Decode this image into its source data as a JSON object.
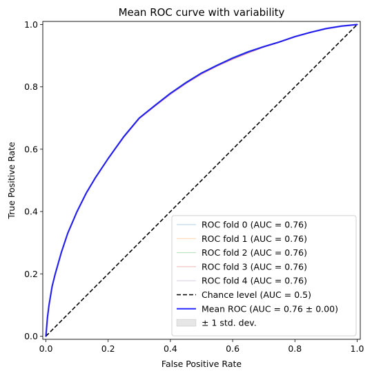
{
  "chart_data": {
    "type": "line",
    "title": "Mean ROC curve with variability",
    "xlabel": "False Positive Rate",
    "ylabel": "True Positive Rate",
    "xlim": [
      -0.01,
      1.01
    ],
    "ylim": [
      -0.01,
      1.01
    ],
    "x_ticks": [
      "0.0",
      "0.2",
      "0.4",
      "0.6",
      "0.8",
      "1.0"
    ],
    "y_ticks": [
      "0.0",
      "0.2",
      "0.4",
      "0.6",
      "0.8",
      "1.0"
    ],
    "grid": false,
    "legend_position": "lower-right",
    "series": [
      {
        "name": "ROC fold 0 (AUC = 0.76)",
        "color": "#1f77b4",
        "style": "thin-faint",
        "x": [
          0,
          0.005,
          0.01,
          0.02,
          0.03,
          0.05,
          0.07,
          0.1,
          0.13,
          0.16,
          0.2,
          0.25,
          0.3,
          0.35,
          0.4,
          0.45,
          0.5,
          0.55,
          0.6,
          0.65,
          0.7,
          0.75,
          0.8,
          0.85,
          0.9,
          0.95,
          1.0
        ],
        "y": [
          0,
          0.06,
          0.1,
          0.16,
          0.2,
          0.27,
          0.33,
          0.4,
          0.46,
          0.51,
          0.57,
          0.64,
          0.7,
          0.74,
          0.78,
          0.815,
          0.845,
          0.87,
          0.895,
          0.915,
          0.93,
          0.945,
          0.962,
          0.975,
          0.987,
          0.995,
          1.0
        ]
      },
      {
        "name": "ROC fold 1 (AUC = 0.76)",
        "color": "#ff7f0e",
        "style": "thin-faint",
        "x": [
          0,
          0.005,
          0.01,
          0.02,
          0.03,
          0.05,
          0.07,
          0.1,
          0.13,
          0.16,
          0.2,
          0.25,
          0.3,
          0.35,
          0.4,
          0.45,
          0.5,
          0.55,
          0.6,
          0.65,
          0.7,
          0.75,
          0.8,
          0.85,
          0.9,
          0.95,
          1.0
        ],
        "y": [
          0,
          0.058,
          0.098,
          0.158,
          0.198,
          0.268,
          0.328,
          0.398,
          0.458,
          0.508,
          0.568,
          0.638,
          0.698,
          0.738,
          0.778,
          0.812,
          0.842,
          0.867,
          0.89,
          0.91,
          0.928,
          0.943,
          0.96,
          0.974,
          0.986,
          0.995,
          1.0
        ]
      },
      {
        "name": "ROC fold 2 (AUC = 0.76)",
        "color": "#2ca02c",
        "style": "thin-faint",
        "x": [
          0,
          0.005,
          0.01,
          0.02,
          0.03,
          0.05,
          0.07,
          0.1,
          0.13,
          0.16,
          0.2,
          0.25,
          0.3,
          0.35,
          0.4,
          0.45,
          0.5,
          0.55,
          0.6,
          0.65,
          0.7,
          0.75,
          0.8,
          0.85,
          0.9,
          0.95,
          1.0
        ],
        "y": [
          0,
          0.061,
          0.101,
          0.161,
          0.201,
          0.271,
          0.331,
          0.401,
          0.461,
          0.511,
          0.571,
          0.641,
          0.701,
          0.741,
          0.781,
          0.816,
          0.846,
          0.871,
          0.894,
          0.913,
          0.93,
          0.945,
          0.962,
          0.975,
          0.987,
          0.995,
          1.0
        ]
      },
      {
        "name": "ROC fold 3 (AUC = 0.76)",
        "color": "#d62728",
        "style": "thin-faint",
        "x": [
          0,
          0.005,
          0.01,
          0.02,
          0.03,
          0.05,
          0.07,
          0.1,
          0.13,
          0.16,
          0.2,
          0.25,
          0.3,
          0.35,
          0.4,
          0.45,
          0.5,
          0.55,
          0.6,
          0.65,
          0.7,
          0.75,
          0.8,
          0.85,
          0.9,
          0.95,
          1.0
        ],
        "y": [
          0,
          0.059,
          0.099,
          0.159,
          0.199,
          0.269,
          0.329,
          0.399,
          0.459,
          0.509,
          0.569,
          0.637,
          0.697,
          0.737,
          0.775,
          0.81,
          0.84,
          0.866,
          0.888,
          0.908,
          0.927,
          0.943,
          0.961,
          0.974,
          0.986,
          0.995,
          1.0
        ]
      },
      {
        "name": "ROC fold 4 (AUC = 0.76)",
        "color": "#9467bd",
        "style": "thin-faint",
        "x": [
          0,
          0.005,
          0.01,
          0.02,
          0.03,
          0.05,
          0.07,
          0.1,
          0.13,
          0.16,
          0.2,
          0.25,
          0.3,
          0.35,
          0.4,
          0.45,
          0.5,
          0.55,
          0.6,
          0.65,
          0.7,
          0.75,
          0.8,
          0.85,
          0.9,
          0.95,
          1.0
        ],
        "y": [
          0,
          0.06,
          0.1,
          0.16,
          0.2,
          0.27,
          0.33,
          0.4,
          0.46,
          0.51,
          0.57,
          0.64,
          0.7,
          0.74,
          0.779,
          0.814,
          0.845,
          0.87,
          0.893,
          0.913,
          0.93,
          0.945,
          0.962,
          0.975,
          0.987,
          0.995,
          1.0
        ]
      },
      {
        "name": "Chance level (AUC = 0.5)",
        "color": "#000000",
        "style": "dashed",
        "x": [
          0,
          1
        ],
        "y": [
          0,
          1
        ]
      },
      {
        "name": "Mean ROC (AUC = 0.76 ± 0.00)",
        "color": "#0000ff",
        "style": "thick",
        "x": [
          0,
          0.005,
          0.01,
          0.02,
          0.03,
          0.05,
          0.07,
          0.1,
          0.13,
          0.16,
          0.2,
          0.25,
          0.3,
          0.35,
          0.4,
          0.45,
          0.5,
          0.55,
          0.6,
          0.65,
          0.7,
          0.75,
          0.8,
          0.85,
          0.9,
          0.95,
          1.0
        ],
        "y": [
          0,
          0.06,
          0.1,
          0.16,
          0.2,
          0.27,
          0.33,
          0.4,
          0.46,
          0.51,
          0.57,
          0.64,
          0.7,
          0.74,
          0.779,
          0.813,
          0.844,
          0.869,
          0.892,
          0.912,
          0.929,
          0.944,
          0.961,
          0.975,
          0.987,
          0.995,
          1.0
        ]
      },
      {
        "name": "± 1 std. dev.",
        "color": "#808080",
        "style": "band",
        "x": [
          0,
          0.005,
          0.01,
          0.02,
          0.03,
          0.05,
          0.07,
          0.1,
          0.13,
          0.16,
          0.2,
          0.25,
          0.3,
          0.35,
          0.4,
          0.45,
          0.5,
          0.55,
          0.6,
          0.65,
          0.7,
          0.75,
          0.8,
          0.85,
          0.9,
          0.95,
          1.0
        ],
        "y_lower": [
          0,
          0.058,
          0.098,
          0.158,
          0.198,
          0.268,
          0.328,
          0.398,
          0.458,
          0.508,
          0.568,
          0.637,
          0.697,
          0.737,
          0.776,
          0.811,
          0.841,
          0.866,
          0.889,
          0.909,
          0.927,
          0.943,
          0.96,
          0.974,
          0.986,
          0.995,
          1.0
        ],
        "y_upper": [
          0,
          0.062,
          0.102,
          0.162,
          0.202,
          0.272,
          0.332,
          0.402,
          0.462,
          0.512,
          0.572,
          0.643,
          0.703,
          0.743,
          0.782,
          0.816,
          0.847,
          0.872,
          0.895,
          0.915,
          0.931,
          0.946,
          0.963,
          0.976,
          0.988,
          0.996,
          1.0
        ]
      }
    ]
  }
}
